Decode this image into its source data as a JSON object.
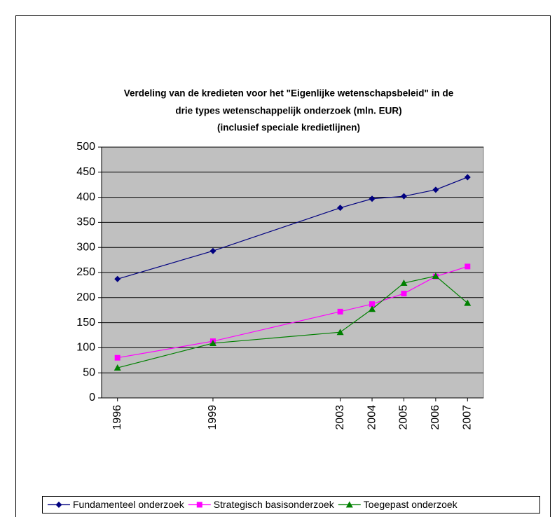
{
  "chart_data": {
    "type": "line",
    "title": [
      "Verdeling van de kredieten voor het \"Eigenlijke wetenschapsbeleid\" in de",
      "drie types wetenschappelijk onderzoek (mln. EUR)",
      "(inclusief speciale kredietlijnen)"
    ],
    "x": [
      1996,
      1999,
      2003,
      2004,
      2005,
      2006,
      2007
    ],
    "xlim": [
      1995.5,
      2007.5
    ],
    "xticks": [
      1996,
      1999,
      2003,
      2004,
      2005,
      2006,
      2007
    ],
    "ylim": [
      0,
      500
    ],
    "yticks": [
      0,
      50,
      100,
      150,
      200,
      250,
      300,
      350,
      400,
      450,
      500
    ],
    "grid": true,
    "legend": "bottom",
    "series": [
      {
        "name": "Fundamenteel onderzoek",
        "color": "#000080",
        "marker": "diamond",
        "values": [
          237,
          293,
          379,
          397,
          402,
          415,
          440
        ]
      },
      {
        "name": "Strategisch basisonderzoek",
        "color": "#ff00ff",
        "marker": "square",
        "values": [
          80,
          113,
          172,
          187,
          208,
          242,
          262
        ]
      },
      {
        "name": "Toegepast onderzoek",
        "color": "#008000",
        "marker": "triangle",
        "values": [
          60,
          109,
          131,
          177,
          229,
          243,
          189
        ]
      }
    ]
  }
}
